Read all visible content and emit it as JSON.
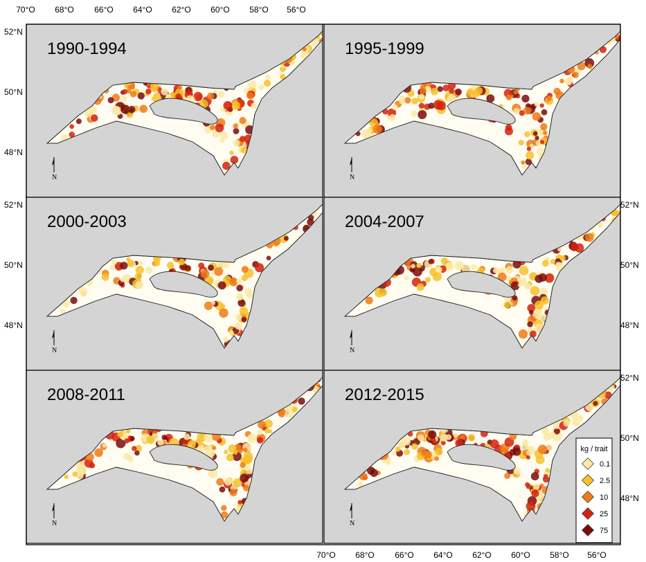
{
  "panels": [
    {
      "title": "1990-1994",
      "level": 3
    },
    {
      "title": "1995-1999",
      "level": 2
    },
    {
      "title": "2000-2003",
      "level": 1
    },
    {
      "title": "2004-2007",
      "level": 2
    },
    {
      "title": "2008-2011",
      "level": 3
    },
    {
      "title": "2012-2015",
      "level": 3
    }
  ],
  "axes": {
    "longitude_labels": [
      "70°O",
      "68°O",
      "66°O",
      "64°O",
      "62°O",
      "60°O",
      "58°O",
      "56°O"
    ],
    "latitude_labels": [
      "52°N",
      "50°N",
      "48°N"
    ]
  },
  "north_arrow_label": "N",
  "legend": {
    "title": "kg / trait",
    "items": [
      {
        "label": "0.1",
        "color": "#fbe9a6"
      },
      {
        "label": "2.5",
        "color": "#f6c12a"
      },
      {
        "label": "10",
        "color": "#ef7a17"
      },
      {
        "label": "25",
        "color": "#d4220f"
      },
      {
        "label": "75",
        "color": "#7a0c0c"
      }
    ]
  },
  "colors": {
    "land": "#d4d4d4",
    "water": "#ffffff",
    "gulf_fill": "#fffdf2"
  }
}
